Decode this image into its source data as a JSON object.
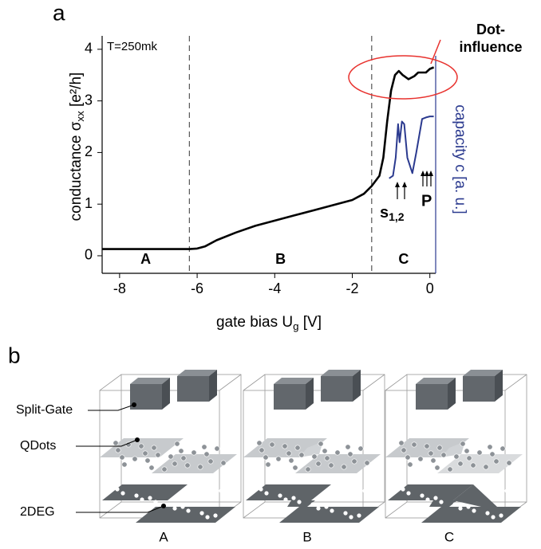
{
  "chart_data": {
    "type": "line",
    "panel_label": "a",
    "x_label": [
      "gate bias U",
      "g",
      " [V]"
    ],
    "y_label": [
      "conductance σ",
      "xx",
      " [e²/h]"
    ],
    "y2_label": "capacity c [a. u.]",
    "xlim": [
      -8.45,
      0.15
    ],
    "ylim": [
      -0.34,
      4.26
    ],
    "y2lim": [
      -0.34,
      4.26
    ],
    "xticks": [
      -8,
      -6,
      -4,
      -2,
      0
    ],
    "yticks": [
      0,
      1,
      2,
      3,
      4
    ],
    "temperature": "T=250mk",
    "region_bounds": [
      -6.2,
      -1.5
    ],
    "regions": [
      "A",
      "B",
      "C"
    ],
    "dot_influence": [
      "Dot-",
      "influence"
    ],
    "s_label": [
      "s",
      "1,2"
    ],
    "p_label": "P",
    "series": [
      {
        "color": "#000000",
        "x": [
          -8.45,
          -7,
          -6.2,
          -6.0,
          -5.8,
          -5.5,
          -5,
          -4.5,
          -4,
          -3.5,
          -3,
          -2.5,
          -2,
          -1.7,
          -1.5,
          -1.3,
          -1.2,
          -1.1,
          -1.0,
          -0.9,
          -0.8,
          -0.7,
          -0.55,
          -0.4,
          -0.3,
          -0.1,
          0.0,
          0.1
        ],
        "values": [
          0.13,
          0.13,
          0.13,
          0.14,
          0.18,
          0.3,
          0.45,
          0.58,
          0.68,
          0.78,
          0.88,
          0.98,
          1.08,
          1.2,
          1.35,
          1.55,
          1.9,
          2.6,
          3.2,
          3.5,
          3.58,
          3.5,
          3.42,
          3.48,
          3.55,
          3.55,
          3.62,
          3.65
        ]
      },
      {
        "color": "#2b3a8f",
        "axis": "y2",
        "x": [
          -1.05,
          -0.95,
          -0.88,
          -0.82,
          -0.78,
          -0.72,
          -0.66,
          -0.58,
          -0.45,
          -0.35,
          -0.2,
          -0.1,
          0.0,
          0.1
        ],
        "values": [
          1.5,
          1.55,
          1.9,
          2.55,
          2.2,
          2.6,
          2.55,
          1.9,
          1.6,
          2.0,
          2.65,
          2.68,
          2.7,
          2.7
        ]
      }
    ]
  },
  "diagram": {
    "panel_label": "b",
    "labels": [
      "Split-Gate",
      "QDots",
      "2DEG"
    ],
    "panels": [
      "A",
      "B",
      "C"
    ]
  }
}
